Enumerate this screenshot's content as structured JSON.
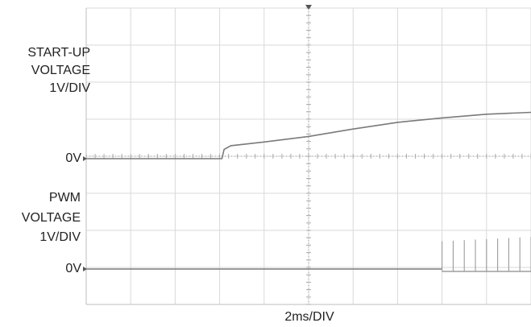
{
  "chart_data": {
    "type": "line",
    "x_axis": {
      "label": "2ms/DIV",
      "divisions": 10,
      "range_ms": [
        0,
        20
      ]
    },
    "grid": true,
    "channels": [
      {
        "name": "START-UP VOLTAGE",
        "label_lines": [
          "START-UP",
          "VOLTAGE",
          "1V/DIV"
        ],
        "scale": "1V/DIV",
        "zero_label": "0V",
        "x_ms": [
          0,
          6.1,
          6.2,
          6.5,
          8,
          10,
          12,
          14,
          16,
          18,
          20
        ],
        "y_volts": [
          0,
          0,
          0.25,
          0.35,
          0.45,
          0.6,
          0.8,
          0.98,
          1.1,
          1.2,
          1.25
        ]
      },
      {
        "name": "PWM VOLTAGE",
        "label_lines": [
          "PWM",
          "VOLTAGE",
          "1V/DIV"
        ],
        "scale": "1V/DIV",
        "zero_label": "0V",
        "baseline_volts": 0,
        "pulse_start_ms": 16.0,
        "pulse_period_ms": 0.5,
        "pulse_count": 22,
        "pulse_amplitude_start_volts": 0.75,
        "pulse_amplitude_end_volts": 1.05
      }
    ]
  }
}
